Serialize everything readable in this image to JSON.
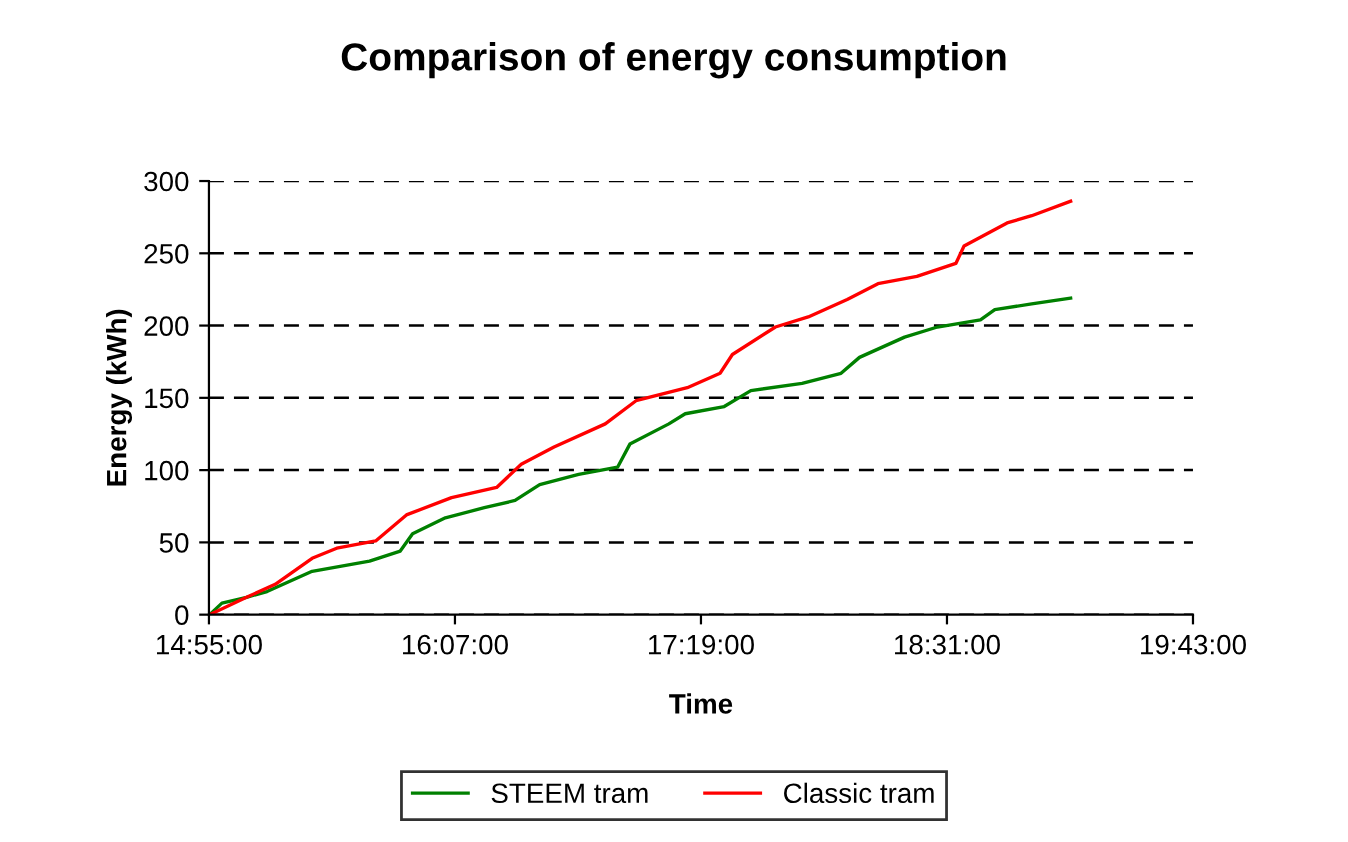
{
  "chart_data": {
    "type": "line",
    "title": "Comparison of energy consumption",
    "xlabel": "Time",
    "ylabel": "Energy (kWh)",
    "xlim": [
      14.9167,
      19.7167
    ],
    "xticks": [
      {
        "value": 14.9167,
        "label": "14:55:00"
      },
      {
        "value": 16.1167,
        "label": "16:07:00"
      },
      {
        "value": 17.3167,
        "label": "17:19:00"
      },
      {
        "value": 18.5167,
        "label": "18:31:00"
      },
      {
        "value": 19.7167,
        "label": "19:43:00"
      }
    ],
    "ylim": [
      0,
      300
    ],
    "yticks": [
      0,
      50,
      100,
      150,
      200,
      250,
      300
    ],
    "grid": "y",
    "legend": "bottom",
    "marker": "none",
    "line_style": "solid",
    "series": [
      {
        "name": "STEEM tram",
        "color": "#008000",
        "x": [
          14.92,
          14.98,
          15.1,
          15.2,
          15.42,
          15.7,
          15.85,
          15.91,
          16.07,
          16.26,
          16.41,
          16.53,
          16.72,
          16.91,
          16.97,
          17.16,
          17.24,
          17.43,
          17.56,
          17.81,
          18.0,
          18.09,
          18.31,
          18.47,
          18.68,
          18.75,
          18.93,
          19.12
        ],
        "values": [
          0,
          8,
          12,
          16,
          30,
          37,
          44,
          56,
          67,
          74,
          79,
          90,
          97,
          102,
          118,
          132,
          139,
          144,
          155,
          160,
          167,
          178,
          192,
          199,
          204,
          211,
          215,
          219
        ]
      },
      {
        "name": "Classic tram",
        "color": "#ff0000",
        "x": [
          14.92,
          15.1,
          15.24,
          15.42,
          15.54,
          15.73,
          15.88,
          16.1,
          16.32,
          16.44,
          16.6,
          16.85,
          17.0,
          17.25,
          17.41,
          17.47,
          17.68,
          17.84,
          18.03,
          18.18,
          18.37,
          18.56,
          18.6,
          18.81,
          18.93,
          19.12
        ],
        "values": [
          0,
          12,
          21,
          39,
          46,
          51,
          69,
          81,
          88,
          104,
          116,
          132,
          148,
          157,
          167,
          180,
          199,
          206,
          218,
          229,
          234,
          243,
          255,
          271,
          276,
          286
        ]
      }
    ]
  }
}
